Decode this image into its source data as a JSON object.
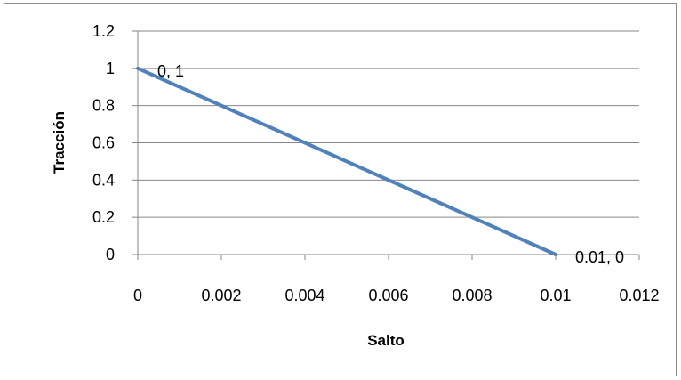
{
  "chart_data": {
    "type": "line",
    "title": "",
    "xlabel": "Salto",
    "ylabel": "Tracción",
    "xlim": [
      0,
      0.012
    ],
    "ylim": [
      0,
      1.2
    ],
    "x_ticks": [
      "0",
      "0.002",
      "0.004",
      "0.006",
      "0.008",
      "0.01",
      "0.012"
    ],
    "y_ticks": [
      "0",
      "0.2",
      "0.4",
      "0.6",
      "0.8",
      "1",
      "1.2"
    ],
    "grid": true,
    "legend": "none",
    "series": [
      {
        "color": "#4f81bd",
        "points": [
          [
            0,
            1
          ],
          [
            0.01,
            0
          ]
        ],
        "data_labels": [
          "0, 1",
          "0.01, 0"
        ]
      }
    ]
  }
}
